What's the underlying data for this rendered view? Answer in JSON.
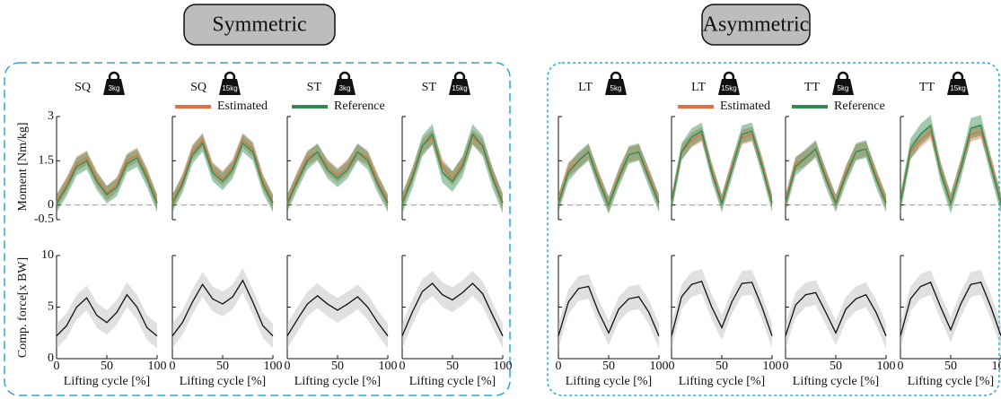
{
  "chart_data": {
    "type": "line",
    "groups": [
      {
        "title": "Symmetric"
      },
      {
        "title": "Asymmetric"
      }
    ],
    "legend": [
      {
        "name": "Estimated",
        "color": "#e0703f"
      },
      {
        "name": "Reference",
        "color": "#2e8b4f"
      }
    ],
    "force_color": "#111111",
    "x": [
      0,
      10,
      20,
      30,
      40,
      50,
      60,
      70,
      80,
      90,
      100
    ],
    "xlabel": "Lifting cycle [%]",
    "xlim": [
      0,
      100
    ],
    "xticks": [
      0,
      50,
      100
    ],
    "moment": {
      "ylabel": "Moment [Nm/kg]",
      "ylim": [
        -0.5,
        3
      ],
      "yticks": [
        -0.5,
        0,
        1.5,
        3
      ]
    },
    "force": {
      "ylabel": "Comp. force[x BW]",
      "ylim": [
        0,
        10
      ],
      "yticks": [
        0,
        5,
        10
      ]
    },
    "panels": [
      {
        "group": 0,
        "task": "SQ",
        "load": "3kg",
        "estimated": {
          "values": [
            0.1,
            0.7,
            1.4,
            1.6,
            0.9,
            0.4,
            0.7,
            1.5,
            1.7,
            1.0,
            0.1
          ],
          "sd": 0.25
        },
        "reference": {
          "values": [
            0.05,
            0.6,
            1.3,
            1.5,
            0.8,
            0.35,
            0.6,
            1.4,
            1.6,
            0.9,
            0.05
          ],
          "sd": 0.3
        },
        "force": {
          "values": [
            2.2,
            3.2,
            5.0,
            5.9,
            4.2,
            3.5,
            4.5,
            6.2,
            5.0,
            3.0,
            2.2
          ],
          "sd": 1.2
        }
      },
      {
        "group": 0,
        "task": "SQ",
        "load": "15kg",
        "estimated": {
          "values": [
            0.1,
            0.8,
            1.8,
            2.2,
            1.2,
            0.9,
            1.3,
            2.2,
            1.9,
            0.8,
            0.1
          ],
          "sd": 0.25
        },
        "reference": {
          "values": [
            0.05,
            0.7,
            1.7,
            2.1,
            1.1,
            0.8,
            1.2,
            2.1,
            1.8,
            0.7,
            0.05
          ],
          "sd": 0.3
        },
        "force": {
          "values": [
            2.2,
            3.5,
            5.5,
            7.2,
            5.8,
            5.3,
            6.0,
            7.6,
            5.5,
            3.2,
            2.2
          ],
          "sd": 1.2
        }
      },
      {
        "group": 0,
        "task": "ST",
        "load": "3kg",
        "estimated": {
          "values": [
            0.1,
            0.9,
            1.6,
            1.8,
            1.3,
            1.0,
            1.3,
            1.8,
            1.6,
            0.8,
            0.1
          ],
          "sd": 0.25
        },
        "reference": {
          "values": [
            0.05,
            0.8,
            1.5,
            1.8,
            1.2,
            0.9,
            1.2,
            1.8,
            1.5,
            0.7,
            0.05
          ],
          "sd": 0.3
        },
        "force": {
          "values": [
            2.2,
            3.8,
            5.3,
            6.1,
            5.3,
            4.7,
            5.3,
            6.0,
            5.0,
            3.5,
            2.2
          ],
          "sd": 1.2
        }
      },
      {
        "group": 0,
        "task": "ST",
        "load": "15kg",
        "estimated": {
          "values": [
            0.1,
            1.0,
            2.0,
            2.3,
            1.3,
            0.9,
            1.4,
            2.3,
            2.0,
            1.0,
            0.1
          ],
          "sd": 0.25
        },
        "reference": {
          "values": [
            0.05,
            0.9,
            2.0,
            2.4,
            1.1,
            0.8,
            1.3,
            2.4,
            2.0,
            0.9,
            0.05
          ],
          "sd": 0.35
        },
        "force": {
          "values": [
            2.2,
            4.5,
            6.5,
            7.3,
            6.2,
            5.7,
            6.4,
            7.3,
            6.3,
            4.2,
            2.2
          ],
          "sd": 1.2
        }
      },
      {
        "group": 1,
        "task": "LT",
        "load": "5kg",
        "estimated": {
          "values": [
            0.1,
            1.2,
            1.5,
            1.8,
            0.9,
            0.0,
            1.0,
            1.7,
            1.8,
            1.0,
            0.1
          ],
          "sd": 0.25
        },
        "reference": {
          "values": [
            0.05,
            1.1,
            1.5,
            1.8,
            0.8,
            0.0,
            0.9,
            1.7,
            1.8,
            0.9,
            0.05
          ],
          "sd": 0.3
        },
        "force": {
          "values": [
            2.2,
            5.5,
            6.8,
            7.0,
            4.5,
            2.5,
            4.8,
            5.8,
            6.0,
            4.5,
            2.2
          ],
          "sd": 1.2
        }
      },
      {
        "group": 1,
        "task": "LT",
        "load": "15kg",
        "estimated": {
          "values": [
            0.1,
            1.8,
            2.2,
            2.4,
            1.2,
            0.1,
            1.3,
            2.3,
            2.4,
            1.4,
            0.1
          ],
          "sd": 0.25
        },
        "reference": {
          "values": [
            0.05,
            1.8,
            2.3,
            2.5,
            1.1,
            0.05,
            1.2,
            2.4,
            2.5,
            1.3,
            0.05
          ],
          "sd": 0.3
        },
        "force": {
          "values": [
            2.2,
            6.0,
            7.2,
            7.5,
            5.0,
            3.0,
            5.5,
            7.3,
            7.4,
            5.0,
            2.2
          ],
          "sd": 1.2
        }
      },
      {
        "group": 1,
        "task": "TT",
        "load": "5kg",
        "estimated": {
          "values": [
            0.1,
            1.4,
            1.6,
            1.9,
            1.0,
            0.1,
            1.1,
            1.8,
            1.9,
            1.0,
            0.1
          ],
          "sd": 0.25
        },
        "reference": {
          "values": [
            0.05,
            1.3,
            1.6,
            1.9,
            0.9,
            0.05,
            1.0,
            1.8,
            1.9,
            0.9,
            0.05
          ],
          "sd": 0.3
        },
        "force": {
          "values": [
            2.2,
            5.2,
            6.2,
            6.4,
            4.5,
            2.5,
            4.8,
            5.8,
            6.2,
            4.5,
            2.2
          ],
          "sd": 1.2
        }
      },
      {
        "group": 1,
        "task": "TT",
        "load": "15kg",
        "estimated": {
          "values": [
            0.1,
            1.8,
            2.2,
            2.5,
            1.2,
            0.1,
            1.3,
            2.4,
            2.5,
            1.4,
            0.1
          ],
          "sd": 0.25
        },
        "reference": {
          "values": [
            0.05,
            1.9,
            2.4,
            2.7,
            1.1,
            0.05,
            1.2,
            2.6,
            2.7,
            1.3,
            0.05
          ],
          "sd": 0.35
        },
        "force": {
          "values": [
            2.2,
            5.8,
            7.0,
            7.4,
            5.0,
            2.8,
            5.3,
            7.2,
            7.4,
            5.0,
            2.2
          ],
          "sd": 1.2
        }
      }
    ]
  }
}
